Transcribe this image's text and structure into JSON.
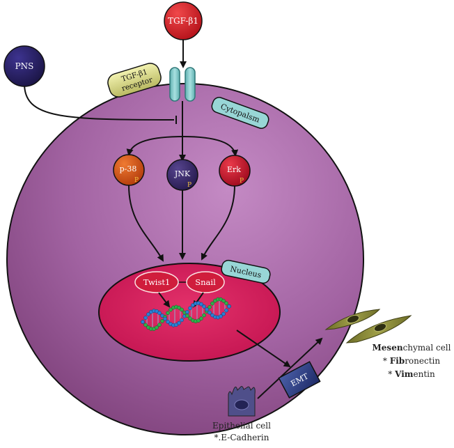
{
  "nodes": {
    "tgf": "TGF-β1",
    "pns": "PNS",
    "receptor": {
      "line1": "TGF-β1",
      "line2": "receptor"
    },
    "cytoplasm": "Cytopalsm",
    "p38": "p-38",
    "jnk": "JNK",
    "erk": "Erk",
    "phospho": "P",
    "twist": "Twist1",
    "snail": "Snail",
    "nucleus": "Nucleus",
    "emt": "EMT"
  },
  "labels": {
    "epithelial": {
      "title": "Epithelial cell",
      "marker": "*.E-Cadherin"
    },
    "mesenchymal": {
      "title_bold": "Mesen",
      "title_rest": "chymal cell",
      "marker1_prefix": "* ",
      "marker1_bold": "Fib",
      "marker1_rest": "ronectin",
      "marker2_prefix": "* ",
      "marker2_bold": "Vim",
      "marker2_rest": "entin"
    }
  },
  "colors": {
    "cell": "#a061a0",
    "nucleus": "#d81c5c",
    "tgf": "#d81f22",
    "pns": "#2b2060",
    "receptor": "#8ecfcf",
    "p38": "#d8561a",
    "jnk": "#3b2a6a",
    "erk": "#c8102a",
    "emt": "#2a3b7a",
    "mesenchymal": "#8a8a3a"
  }
}
